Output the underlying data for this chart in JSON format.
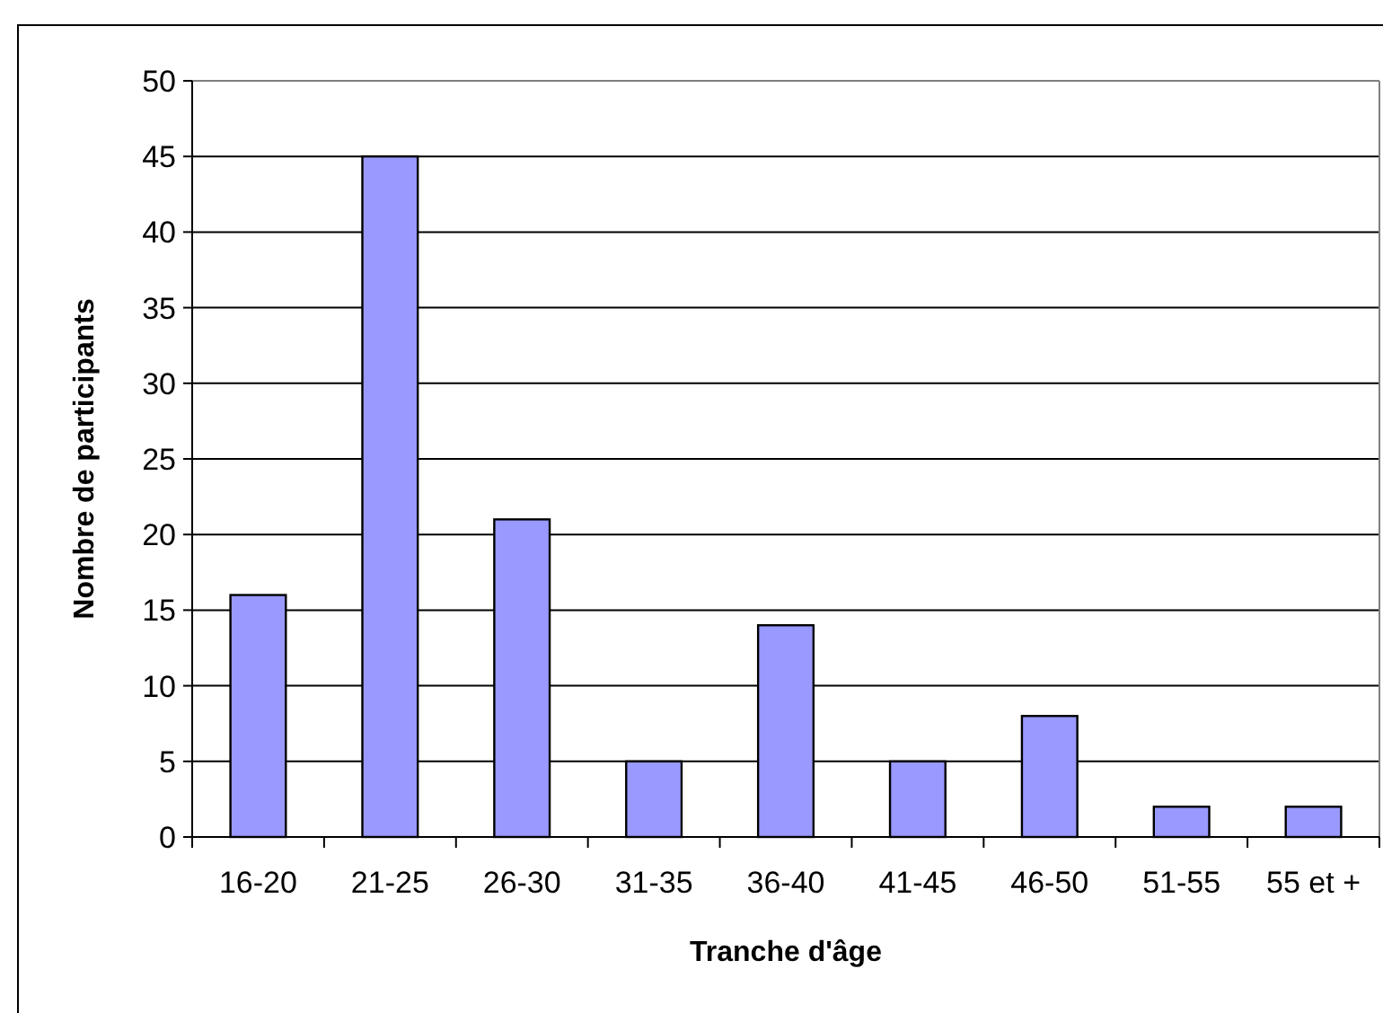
{
  "chart_data": {
    "type": "bar",
    "xlabel": "Tranche d'âge",
    "ylabel": "Nombre de participants",
    "categories": [
      "16-20",
      "21-25",
      "26-30",
      "31-35",
      "36-40",
      "41-45",
      "46-50",
      "51-55",
      "55 et +"
    ],
    "values": [
      16,
      45,
      21,
      5,
      14,
      5,
      8,
      2,
      2
    ],
    "color": "#9999ff",
    "ylim": [
      0,
      50
    ],
    "yticks": [
      0,
      5,
      10,
      15,
      20,
      25,
      30,
      35,
      40,
      45,
      50
    ],
    "grid": "y"
  }
}
